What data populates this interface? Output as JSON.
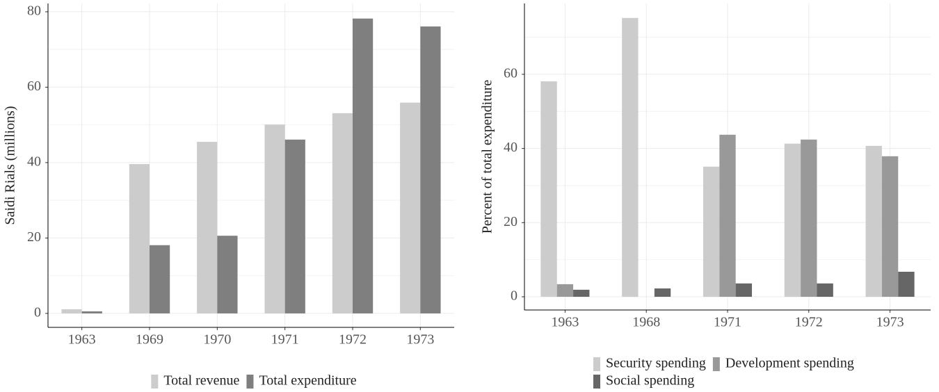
{
  "chart_data": [
    {
      "type": "bar",
      "y_label": "Saidi Rials (millions)",
      "categories": [
        "1963",
        "1969",
        "1970",
        "1971",
        "1972",
        "1973"
      ],
      "series": [
        {
          "name": "Total revenue",
          "color": "#cccccc",
          "values": [
            1.1,
            39.6,
            45.5,
            50.1,
            53.1,
            55.9
          ]
        },
        {
          "name": "Total expenditure",
          "color": "#7f7f7f",
          "values": [
            0.55,
            18.1,
            20.6,
            46.1,
            78.2,
            76.1
          ]
        }
      ],
      "ylim": [
        -3.7,
        82.2
      ],
      "yticks": [
        0,
        20,
        40,
        60,
        80
      ],
      "grid": true,
      "legend": "bottom"
    },
    {
      "type": "bar",
      "y_label": "Percent of total expenditure",
      "categories": [
        "1963",
        "1968",
        "1971",
        "1972",
        "1973"
      ],
      "series": [
        {
          "name": "Security spending",
          "color": "#cccccc",
          "values": [
            58.1,
            75.2,
            35.1,
            41.3,
            40.7
          ]
        },
        {
          "name": "Development spending",
          "color": "#999999",
          "values": [
            3.4,
            null,
            43.7,
            42.4,
            37.9
          ]
        },
        {
          "name": "Social spending",
          "color": "#666666",
          "values": [
            1.9,
            2.25,
            3.6,
            3.6,
            6.75
          ]
        }
      ],
      "ylim": [
        -3.56,
        79.1
      ],
      "yticks": [
        0,
        20,
        40,
        60
      ],
      "grid": true,
      "legend": "bottom"
    }
  ]
}
